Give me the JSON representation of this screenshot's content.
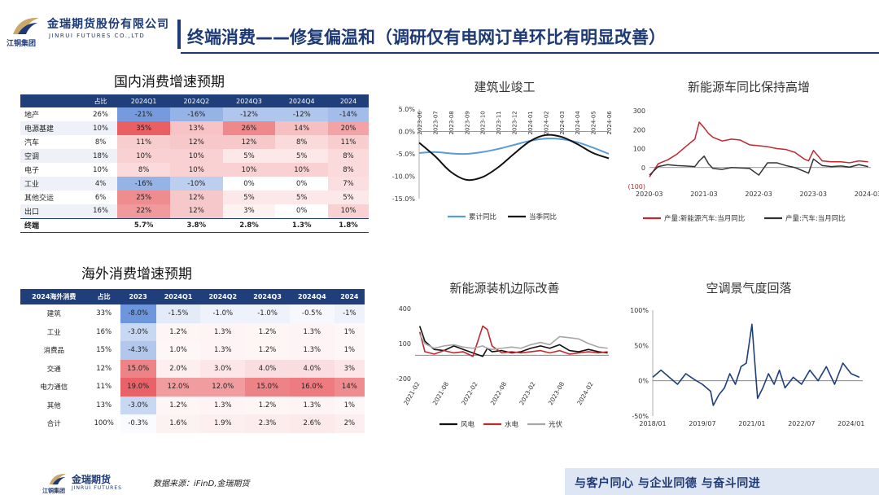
{
  "header": {
    "logo_cn": "金瑞期货股份有限公司",
    "logo_en": "JINRUI FUTURES CO.,LTD",
    "logo_group": "江铜集团",
    "title": "终端消费——修复偏温和（调研仅有电网订单环比有明显改善）",
    "brand_color": "#1d3a76"
  },
  "domestic": {
    "title": "国内消费增速预期",
    "headers": [
      "",
      "占比",
      "2024Q1",
      "2024Q2",
      "2024Q3",
      "2024Q4",
      "2024"
    ],
    "rows": [
      {
        "label": "地产",
        "share": "26%",
        "values": [
          "-21%",
          "-16%",
          "-12%",
          "-12%",
          "-14%"
        ]
      },
      {
        "label": "电源基建",
        "share": "10%",
        "values": [
          "35%",
          "13%",
          "26%",
          "14%",
          "20%"
        ]
      },
      {
        "label": "汽车",
        "share": "8%",
        "values": [
          "11%",
          "12%",
          "12%",
          "8%",
          "11%"
        ]
      },
      {
        "label": "空调",
        "share": "18%",
        "values": [
          "10%",
          "10%",
          "5%",
          "5%",
          "8%"
        ]
      },
      {
        "label": "电子",
        "share": "10%",
        "values": [
          "8%",
          "10%",
          "10%",
          "10%",
          "8%"
        ]
      },
      {
        "label": "工业",
        "share": "4%",
        "values": [
          "-16%",
          "-10%",
          "0%",
          "0%",
          "7%"
        ]
      },
      {
        "label": "其他交运",
        "share": "6%",
        "values": [
          "25%",
          "12%",
          "5%",
          "5%",
          "5%"
        ]
      },
      {
        "label": "出口",
        "share": "16%",
        "values": [
          "22%",
          "12%",
          "3%",
          "0%",
          "10%"
        ]
      }
    ],
    "total": {
      "label": "终端",
      "share": "",
      "values": [
        "5.7%",
        "3.8%",
        "2.8%",
        "1.3%",
        "1.8%"
      ]
    }
  },
  "overseas": {
    "title": "海外消费增速预期",
    "headers": [
      "2024海外消费",
      "占比",
      "2023",
      "2024Q1",
      "2024Q2",
      "2024Q3",
      "2024Q4",
      "2024"
    ],
    "rows": [
      {
        "label": "建筑",
        "share": "33%",
        "values": [
          "-8.0%",
          "-1.5%",
          "-1.0%",
          "-1.0%",
          "-0.5%",
          "-1%"
        ]
      },
      {
        "label": "工业",
        "share": "16%",
        "values": [
          "-3.0%",
          "1.2%",
          "1.3%",
          "1.2%",
          "1.3%",
          "1%"
        ]
      },
      {
        "label": "消费品",
        "share": "15%",
        "values": [
          "-4.3%",
          "1.0%",
          "1.3%",
          "1.2%",
          "1.3%",
          "1%"
        ]
      },
      {
        "label": "交通",
        "share": "12%",
        "values": [
          "15.0%",
          "2.0%",
          "3.0%",
          "4.0%",
          "4.0%",
          "3%"
        ]
      },
      {
        "label": "电力通信",
        "share": "11%",
        "values": [
          "19.0%",
          "12.0%",
          "12.0%",
          "15.0%",
          "16.0%",
          "14%"
        ]
      },
      {
        "label": "其他",
        "share": "13%",
        "values": [
          "-3.0%",
          "1.2%",
          "1.3%",
          "1.2%",
          "1.3%",
          "1%"
        ]
      },
      {
        "label": "合计",
        "share": "100%",
        "values": [
          "-0.3%",
          "1.6%",
          "1.9%",
          "2.3%",
          "2.6%",
          "2%"
        ]
      }
    ]
  },
  "chart_data": [
    {
      "type": "line",
      "title": "建筑业竣工",
      "categories": [
        "2023-06",
        "2023-07",
        "2023-08",
        "2023-09",
        "2023-10",
        "2023-11",
        "2023-12",
        "2024-01",
        "2024-02",
        "2024-03",
        "2024-04",
        "2024-05",
        "2024-06"
      ],
      "ylim": [
        -15,
        5
      ],
      "yticks": [
        "5.0%",
        "0.0%",
        "-5.0%",
        "-10.0%",
        "-15.0%"
      ],
      "series": [
        {
          "name": "累计同比",
          "color": "#5b9bd5",
          "values": [
            -4.8,
            -4.6,
            -4.9,
            -5.0,
            -4.6,
            -3.9,
            -3.0,
            -2.1,
            -1.6,
            -1.7,
            -2.4,
            -3.6,
            -5.0
          ]
        },
        {
          "name": "当季同比",
          "color": "#111111",
          "values": [
            -2.5,
            -5.5,
            -9.0,
            -10.8,
            -10.2,
            -8.0,
            -5.0,
            -2.2,
            -0.8,
            -1.2,
            -2.8,
            -4.8,
            -6.0
          ]
        }
      ],
      "legend": "bottom"
    },
    {
      "type": "line",
      "title": "新能源车同比保持高增",
      "xticks": [
        "2020-03",
        "2021-03",
        "2022-03",
        "2023-03",
        "2024-03"
      ],
      "x": [
        2020.17,
        2020.33,
        2020.5,
        2020.67,
        2020.83,
        2021.0,
        2021.08,
        2021.17,
        2021.25,
        2021.33,
        2021.5,
        2021.67,
        2021.83,
        2022.0,
        2022.17,
        2022.33,
        2022.5,
        2022.67,
        2022.83,
        2023.0,
        2023.08,
        2023.17,
        2023.33,
        2023.5,
        2023.67,
        2023.83,
        2024.0,
        2024.17
      ],
      "ylim": [
        -100,
        300
      ],
      "yticks": [
        "300",
        "200",
        "100",
        "0",
        "(100)"
      ],
      "series": [
        {
          "name": "产量:新能源汽车:当月同比",
          "color": "#c0282d",
          "values": [
            -50,
            20,
            40,
            70,
            110,
            150,
            240,
            210,
            180,
            160,
            140,
            150,
            145,
            120,
            115,
            110,
            100,
            95,
            80,
            45,
            35,
            90,
            35,
            30,
            30,
            25,
            35,
            30
          ]
        },
        {
          "name": "产量:汽车:当月同比",
          "color": "#333333",
          "values": [
            -40,
            5,
            15,
            10,
            8,
            5,
            35,
            60,
            20,
            -5,
            -10,
            0,
            -2,
            -5,
            -40,
            25,
            25,
            10,
            0,
            -20,
            -30,
            45,
            10,
            5,
            8,
            2,
            15,
            5
          ]
        }
      ],
      "legend": "bottom"
    },
    {
      "type": "line",
      "title": "新能源装机边际改善",
      "xticks": [
        "2021-02",
        "2021-08",
        "2022-02",
        "2022-08",
        "2023-02",
        "2023-08",
        "2024-02"
      ],
      "x": [
        2021.08,
        2021.17,
        2021.33,
        2021.5,
        2021.67,
        2021.83,
        2022.0,
        2022.17,
        2022.25,
        2022.33,
        2022.5,
        2022.67,
        2022.83,
        2023.0,
        2023.17,
        2023.33,
        2023.5,
        2023.67,
        2023.83,
        2024.0,
        2024.17,
        2024.33
      ],
      "ylim": [
        -200,
        400
      ],
      "yticks": [
        "400",
        "100",
        "-200"
      ],
      "series": [
        {
          "name": "风电",
          "color": "#111111",
          "values": [
            250,
            120,
            50,
            40,
            80,
            50,
            20,
            -10,
            60,
            30,
            40,
            20,
            30,
            60,
            80,
            60,
            90,
            40,
            30,
            50,
            30,
            20
          ]
        },
        {
          "name": "水电",
          "color": "#c0282d",
          "values": [
            200,
            30,
            10,
            40,
            20,
            30,
            -10,
            250,
            220,
            80,
            20,
            30,
            20,
            30,
            40,
            20,
            40,
            10,
            20,
            30,
            20,
            30
          ]
        },
        {
          "name": "光伏",
          "color": "#a6a6a6",
          "values": [
            180,
            100,
            60,
            80,
            90,
            70,
            60,
            80,
            60,
            50,
            60,
            70,
            60,
            90,
            110,
            90,
            160,
            150,
            140,
            100,
            70,
            60
          ]
        }
      ],
      "legend": "bottom"
    },
    {
      "type": "line",
      "title": "空调景气度回落",
      "xticks": [
        "2018/01",
        "2019/07",
        "2021/01",
        "2022/07",
        "2024/01"
      ],
      "x": [
        2018.0,
        2018.25,
        2018.5,
        2018.75,
        2019.0,
        2019.25,
        2019.5,
        2019.75,
        2019.83,
        2020.0,
        2020.17,
        2020.33,
        2020.5,
        2020.67,
        2020.83,
        2021.0,
        2021.08,
        2021.17,
        2021.33,
        2021.5,
        2021.67,
        2021.83,
        2022.0,
        2022.25,
        2022.5,
        2022.75,
        2023.0,
        2023.25,
        2023.5,
        2023.75,
        2024.0,
        2024.25
      ],
      "ylim": [
        -50,
        100
      ],
      "yticks": [
        "100%",
        "50%",
        "0%",
        "-50%"
      ],
      "series": [
        {
          "name": "空调",
          "color": "#1f3e7a",
          "values": [
            5,
            15,
            5,
            -5,
            10,
            2,
            -5,
            -15,
            -35,
            -20,
            -10,
            10,
            -5,
            20,
            25,
            80,
            30,
            -25,
            -10,
            10,
            -5,
            15,
            -10,
            5,
            -5,
            15,
            0,
            20,
            -5,
            25,
            10,
            5
          ]
        }
      ]
    }
  ],
  "footer": {
    "logo_cn": "金瑞期货",
    "logo_en": "JINRUI FUTURES",
    "logo_group": "江铜集团",
    "source": "数据来源：iFinD,金瑞期货",
    "slogan": "与客户同心  与企业同德  与奋斗同进"
  }
}
